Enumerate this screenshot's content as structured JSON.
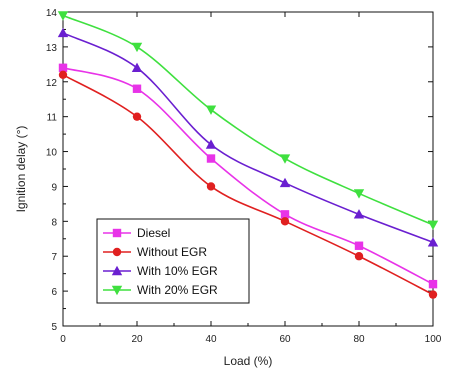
{
  "chart_data": {
    "type": "line",
    "title": "",
    "xlabel": "Load (%)",
    "ylabel": "Ignition delay (°)",
    "x": [
      0,
      20,
      40,
      60,
      80,
      100
    ],
    "xlim": [
      0,
      100
    ],
    "ylim": [
      5,
      14
    ],
    "xticks": [
      "0",
      "20",
      "40",
      "60",
      "80",
      "100"
    ],
    "yticks": [
      "5",
      "6",
      "7",
      "8",
      "9",
      "10",
      "11",
      "12",
      "13",
      "14"
    ],
    "grid": false,
    "legend_position": "bottom-left",
    "series": [
      {
        "name": "Diesel",
        "color": "#e833e8",
        "marker": "square",
        "values": [
          12.4,
          11.8,
          9.8,
          8.2,
          7.3,
          6.2
        ]
      },
      {
        "name": "Without EGR",
        "color": "#e02020",
        "marker": "circle",
        "values": [
          12.2,
          11.0,
          9.0,
          8.0,
          7.0,
          5.9
        ]
      },
      {
        "name": "With 10% EGR",
        "color": "#6a1fd0",
        "marker": "triangle-up",
        "values": [
          13.4,
          12.4,
          10.2,
          9.1,
          8.2,
          7.4
        ]
      },
      {
        "name": "With 20% EGR",
        "color": "#3fe03f",
        "marker": "triangle-down",
        "values": [
          13.9,
          13.0,
          11.2,
          9.8,
          8.8,
          7.9
        ]
      }
    ]
  }
}
